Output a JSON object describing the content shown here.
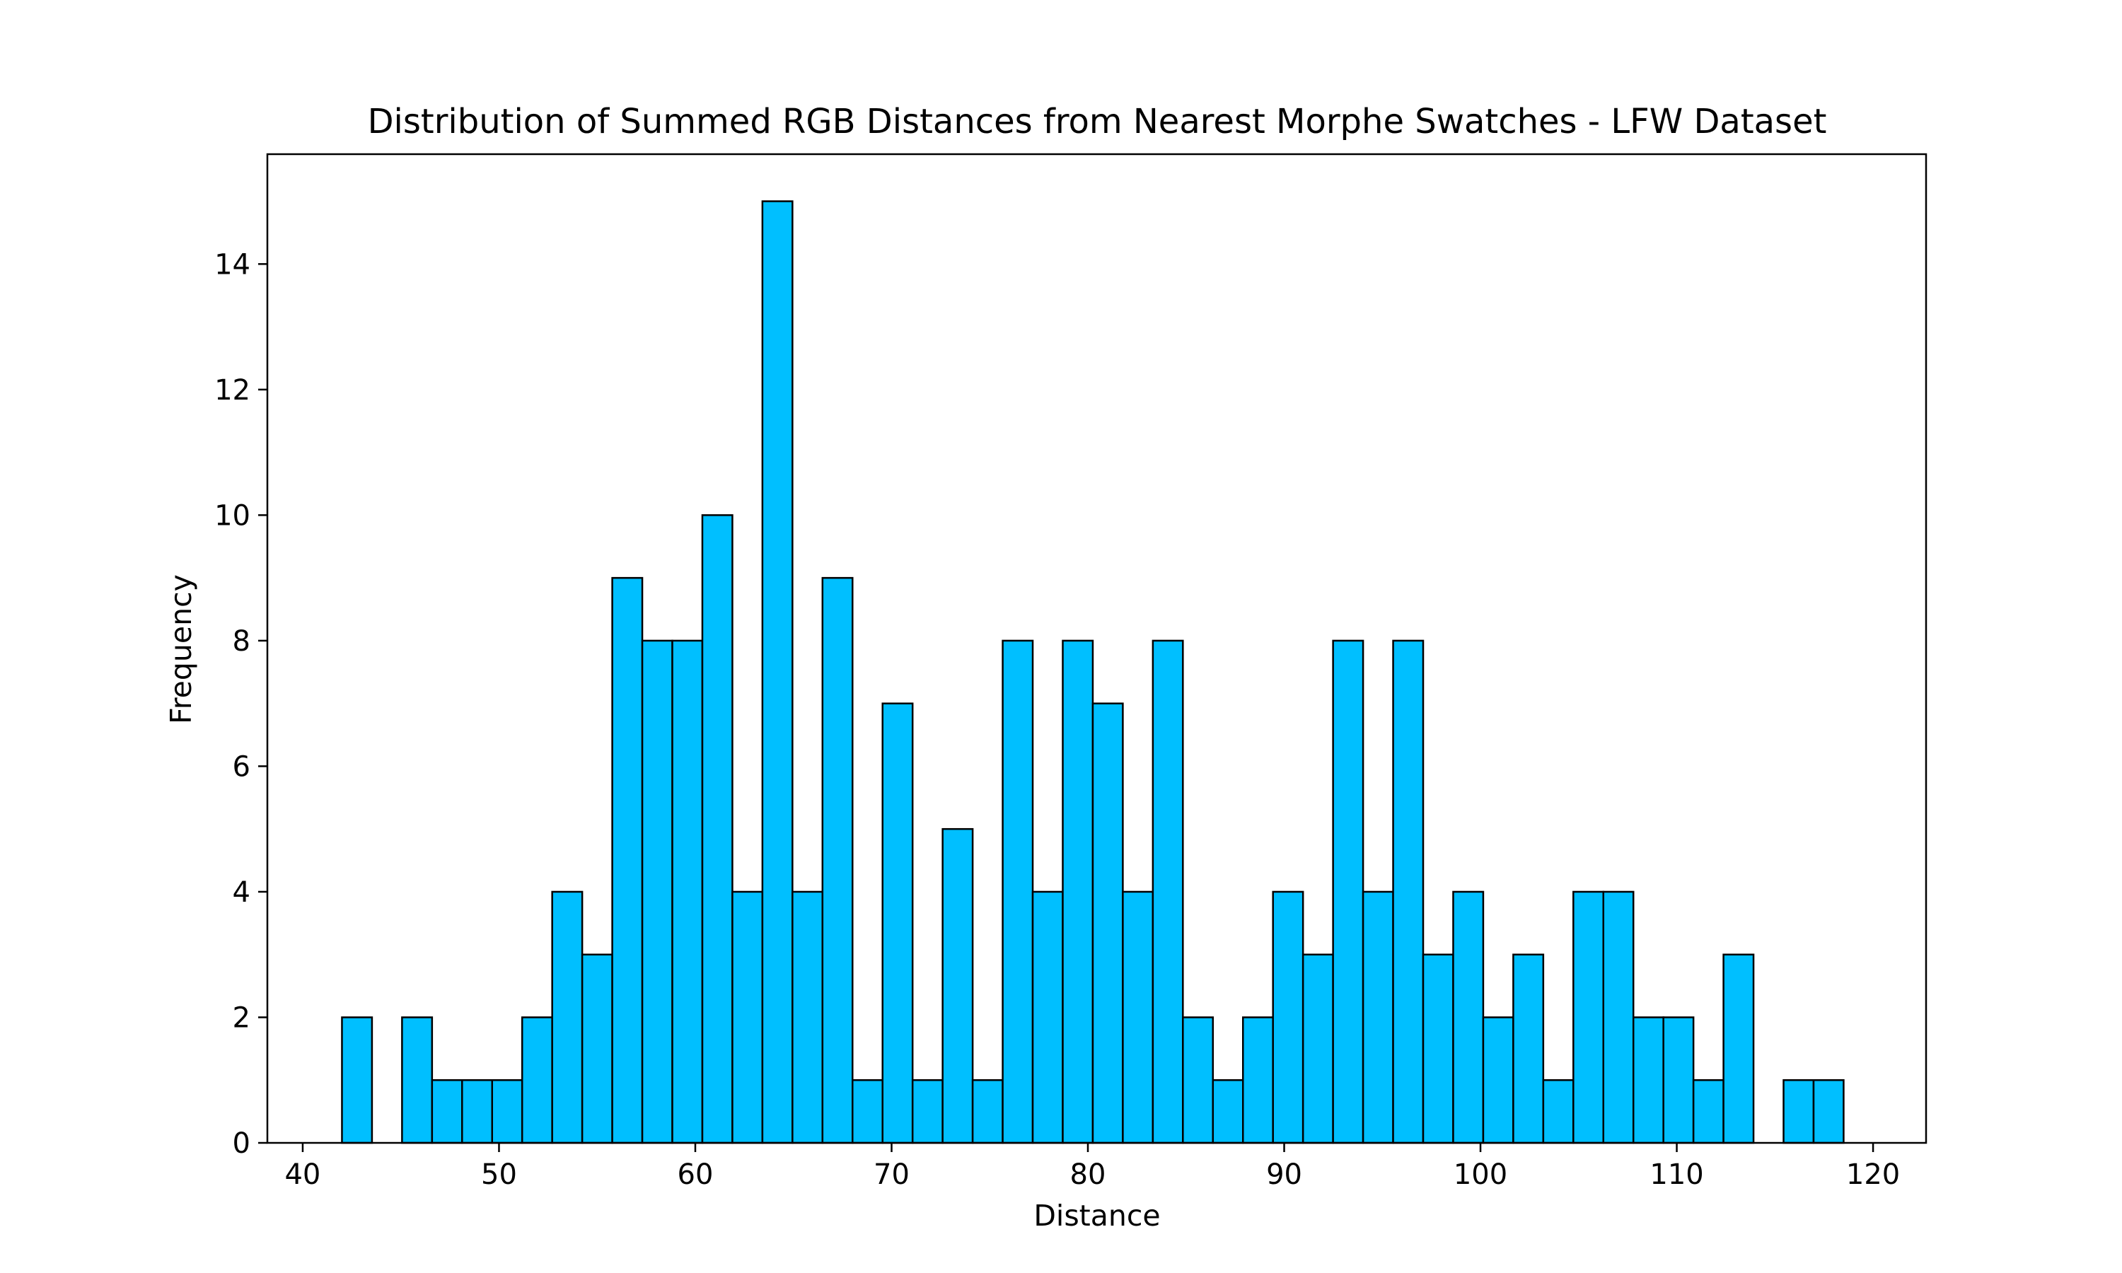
{
  "chart_data": {
    "type": "bar",
    "title": "Distribution of Summed RGB Distances from Nearest Morphe Swatches - LFW Dataset",
    "xlabel": "Distance",
    "ylabel": "Frequency",
    "xlim": [
      38.2,
      122.7
    ],
    "ylim": [
      0,
      15.75
    ],
    "bin_edges": [
      42.0,
      43.53,
      45.06,
      46.59,
      48.12,
      49.65,
      51.18,
      52.71,
      54.24,
      55.77,
      57.3,
      58.83,
      60.36,
      61.89,
      63.42,
      64.95,
      66.48,
      68.01,
      69.54,
      71.07,
      72.6,
      74.13,
      75.66,
      77.19,
      78.72,
      80.25,
      81.78,
      83.31,
      84.84,
      86.37,
      87.9,
      89.43,
      90.96,
      92.49,
      94.02,
      95.55,
      97.08,
      98.61,
      100.14,
      101.67,
      103.2,
      104.73,
      106.26,
      107.79,
      109.32,
      110.85,
      112.38,
      113.91,
      115.44,
      116.97,
      118.5
    ],
    "values": [
      2,
      0,
      2,
      1,
      1,
      1,
      2,
      4,
      3,
      9,
      8,
      8,
      10,
      4,
      15,
      4,
      9,
      1,
      7,
      1,
      5,
      1,
      8,
      4,
      8,
      7,
      4,
      8,
      2,
      1,
      2,
      4,
      3,
      8,
      4,
      8,
      3,
      4,
      2,
      3,
      1,
      4,
      4,
      2,
      2,
      1,
      3,
      0,
      1,
      1
    ],
    "x_ticks": [
      40,
      50,
      60,
      70,
      80,
      90,
      100,
      110,
      120
    ],
    "y_ticks": [
      0,
      2,
      4,
      6,
      8,
      10,
      12,
      14
    ],
    "bar_color": "#00bfff",
    "edge_color": "#000000",
    "grid": false,
    "legend": false
  }
}
